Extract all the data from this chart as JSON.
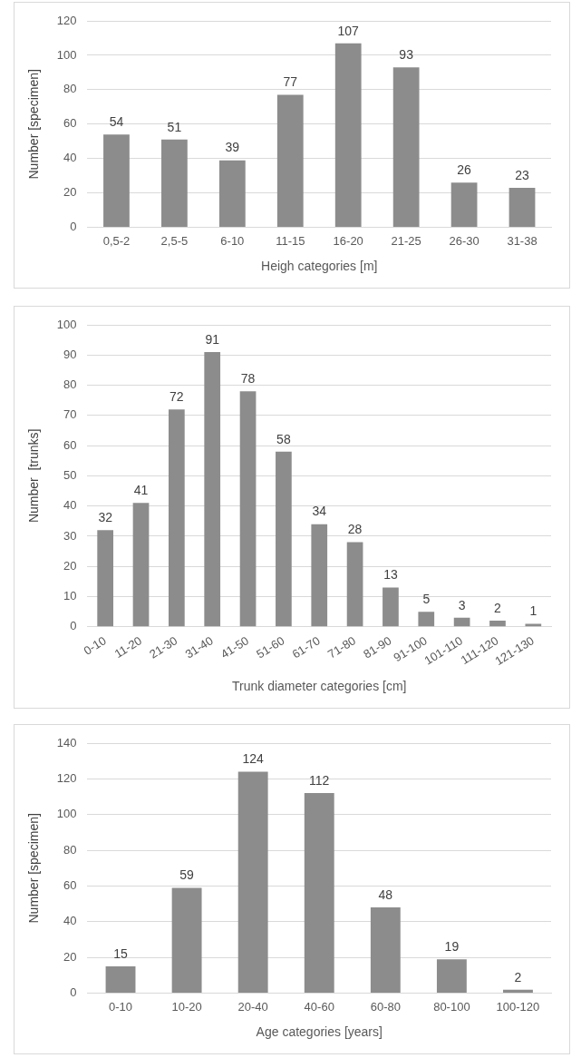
{
  "chart_data": [
    {
      "type": "bar",
      "xlabel": "Heigh categories [m]",
      "ylabel": "Number [specimen]",
      "categories": [
        "0,5-2",
        "2,5-5",
        "6-10",
        "11-15",
        "16-20",
        "21-25",
        "26-30",
        "31-38"
      ],
      "values": [
        54,
        51,
        39,
        77,
        107,
        93,
        26,
        23
      ],
      "color": "#8c8c8c",
      "ylim": [
        0,
        120
      ],
      "yticks": [
        0,
        20,
        40,
        60,
        80,
        100,
        120
      ],
      "grid": "y",
      "data_labels": true
    },
    {
      "type": "bar",
      "xlabel": "Trunk diameter categories [cm]",
      "ylabel": "Number  [trunks]",
      "categories": [
        "0-10",
        "11-20",
        "21-30",
        "31-40",
        "41-50",
        "51-60",
        "61-70",
        "71-80",
        "81-90",
        "91-100",
        "101-110",
        "111-120",
        "121-130"
      ],
      "values": [
        32,
        41,
        72,
        91,
        78,
        58,
        34,
        28,
        13,
        5,
        3,
        2,
        1
      ],
      "color": "#8c8c8c",
      "ylim": [
        0,
        100
      ],
      "yticks": [
        0,
        10,
        20,
        30,
        40,
        50,
        60,
        70,
        80,
        90,
        100
      ],
      "grid": "y",
      "data_labels": true
    },
    {
      "type": "bar",
      "xlabel": "Age categories [years]",
      "ylabel": "Number [specimen]",
      "categories": [
        "0-10",
        "10-20",
        "20-40",
        "40-60",
        "60-80",
        "80-100",
        "100-120"
      ],
      "values": [
        15,
        59,
        124,
        112,
        48,
        19,
        2
      ],
      "color": "#8c8c8c",
      "ylim": [
        0,
        140
      ],
      "yticks": [
        0,
        20,
        40,
        60,
        80,
        100,
        120,
        140
      ],
      "grid": "y",
      "data_labels": true
    }
  ]
}
